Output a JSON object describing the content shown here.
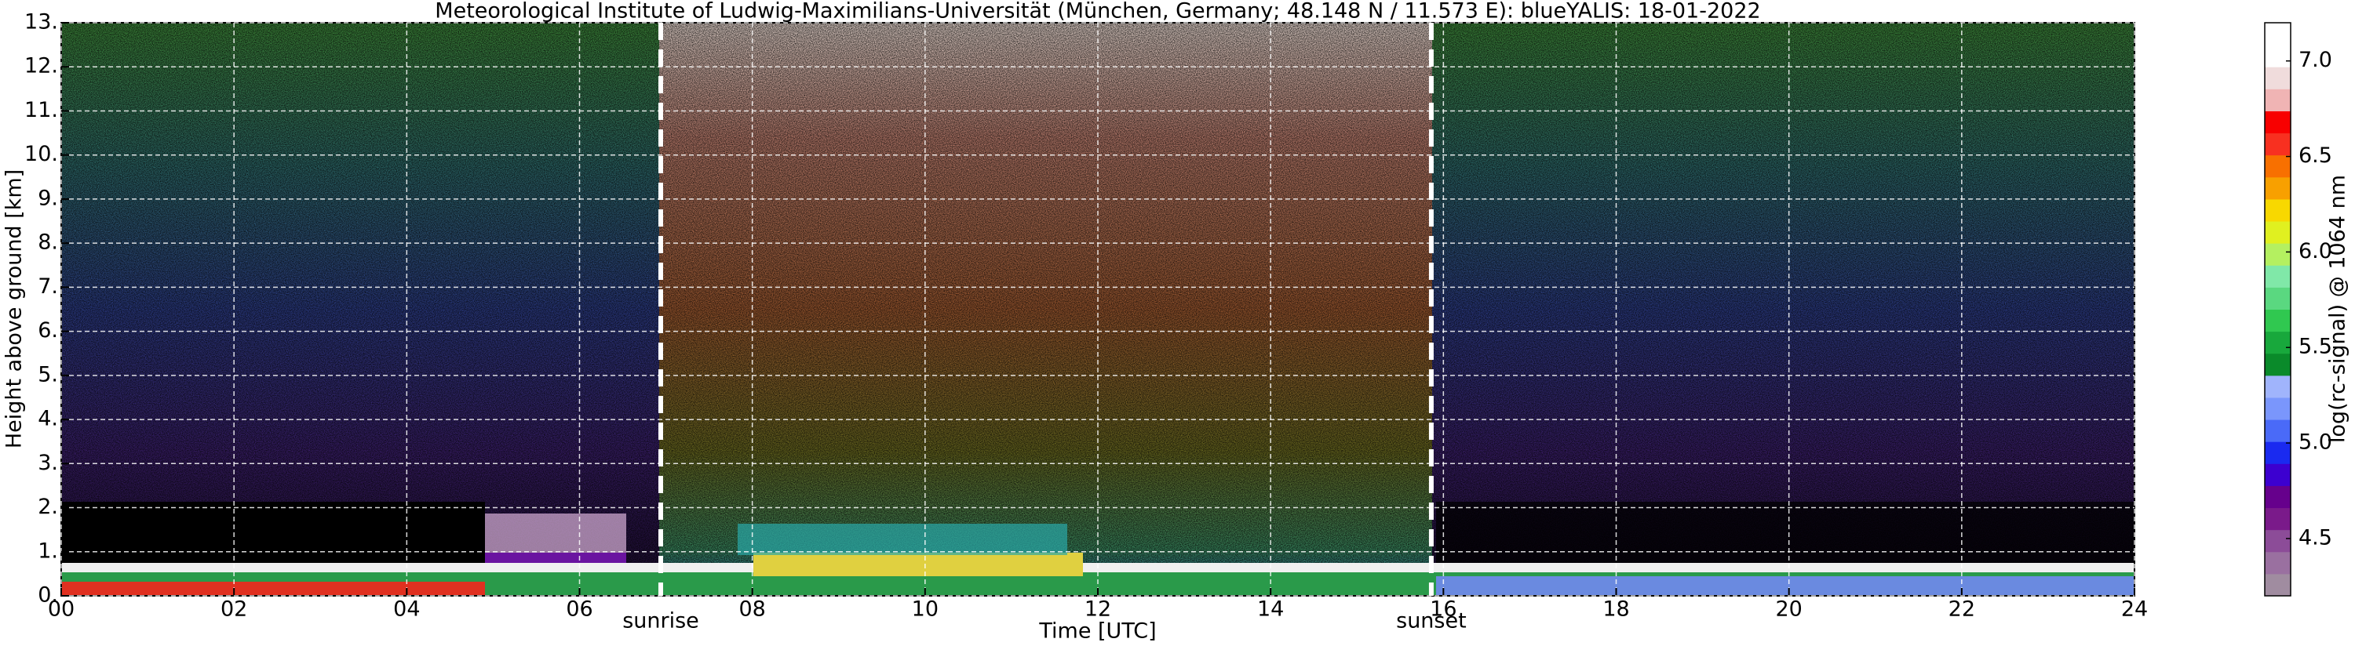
{
  "chart_data": {
    "type": "heatmap",
    "title": "Meteorological Institute of Ludwig-Maximilians-Universität (München, Germany; 48.148 N / 11.573 E):    blueYALIS: 18-01-2022",
    "xlabel": "Time [UTC]",
    "ylabel": "Height above ground [km]",
    "colorbar_label": "log(rc-signal) @ 1064 nm",
    "xlim": [
      0,
      24
    ],
    "xticks": [
      {
        "value": 0,
        "label": "00"
      },
      {
        "value": 2,
        "label": "02"
      },
      {
        "value": 4,
        "label": "04"
      },
      {
        "value": 6,
        "label": "06"
      },
      {
        "value": 8,
        "label": "08"
      },
      {
        "value": 10,
        "label": "10"
      },
      {
        "value": 12,
        "label": "12"
      },
      {
        "value": 14,
        "label": "14"
      },
      {
        "value": 16,
        "label": "16"
      },
      {
        "value": 18,
        "label": "18"
      },
      {
        "value": 20,
        "label": "20"
      },
      {
        "value": 22,
        "label": "22"
      },
      {
        "value": 24,
        "label": "24"
      }
    ],
    "ylim": [
      0,
      13
    ],
    "yticks": [
      {
        "value": 0,
        "label": "0."
      },
      {
        "value": 1,
        "label": "1."
      },
      {
        "value": 2,
        "label": "2."
      },
      {
        "value": 3,
        "label": "3."
      },
      {
        "value": 4,
        "label": "4."
      },
      {
        "value": 5,
        "label": "5."
      },
      {
        "value": 6,
        "label": "6."
      },
      {
        "value": 7,
        "label": "7."
      },
      {
        "value": 8,
        "label": "8."
      },
      {
        "value": 9,
        "label": "9."
      },
      {
        "value": 10,
        "label": "10."
      },
      {
        "value": 11,
        "label": "11."
      },
      {
        "value": 12,
        "label": "12."
      },
      {
        "value": 13,
        "label": "13."
      }
    ],
    "clim": [
      4.2,
      7.2
    ],
    "cticks": [
      4.5,
      5.0,
      5.5,
      6.0,
      6.5,
      7.0
    ],
    "colormap": [
      "#a08ca0",
      "#9a70a0",
      "#8c4c98",
      "#7a1a8a",
      "#66008c",
      "#3c00d0",
      "#1a2af0",
      "#4a6af8",
      "#7a96fc",
      "#a0b4fc",
      "#0a8a2a",
      "#18a83c",
      "#30c850",
      "#5ad880",
      "#80e8a8",
      "#b4f060",
      "#e0f020",
      "#f8d800",
      "#f8a000",
      "#f87000",
      "#f83020",
      "#f80000",
      "#f0b4b4",
      "#f0dcdc",
      "#ffffff",
      "#ffffff"
    ],
    "grid": true,
    "annotations": [
      {
        "x": 6.94,
        "label": "sunrise"
      },
      {
        "x": 15.86,
        "label": "sunset"
      }
    ]
  }
}
